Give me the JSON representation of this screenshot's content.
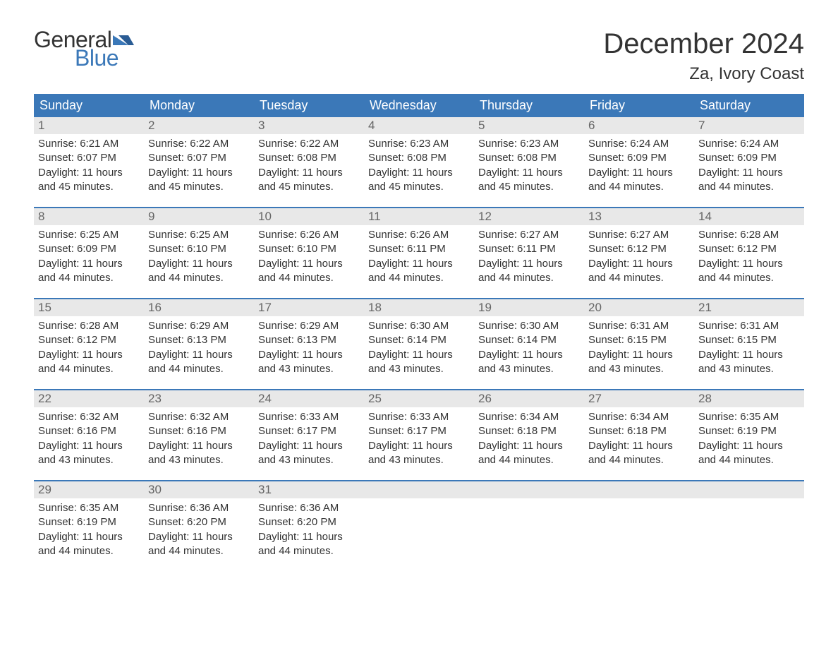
{
  "logo": {
    "text1": "General",
    "text2": "Blue",
    "accent_color": "#3b78b8"
  },
  "title": "December 2024",
  "location": "Za, Ivory Coast",
  "day_names": [
    "Sunday",
    "Monday",
    "Tuesday",
    "Wednesday",
    "Thursday",
    "Friday",
    "Saturday"
  ],
  "colors": {
    "header_bg": "#3b78b8",
    "header_text": "#ffffff",
    "daynum_bg": "#e8e8e8",
    "daynum_text": "#666666",
    "body_text": "#333333",
    "week_border": "#3b78b8",
    "page_bg": "#ffffff"
  },
  "fonts": {
    "title_size_pt": 30,
    "location_size_pt": 18,
    "dayheader_size_pt": 14,
    "daynum_size_pt": 13,
    "body_size_pt": 11
  },
  "weeks": [
    [
      {
        "n": "1",
        "sunrise": "Sunrise: 6:21 AM",
        "sunset": "Sunset: 6:07 PM",
        "daylight1": "Daylight: 11 hours",
        "daylight2": "and 45 minutes."
      },
      {
        "n": "2",
        "sunrise": "Sunrise: 6:22 AM",
        "sunset": "Sunset: 6:07 PM",
        "daylight1": "Daylight: 11 hours",
        "daylight2": "and 45 minutes."
      },
      {
        "n": "3",
        "sunrise": "Sunrise: 6:22 AM",
        "sunset": "Sunset: 6:08 PM",
        "daylight1": "Daylight: 11 hours",
        "daylight2": "and 45 minutes."
      },
      {
        "n": "4",
        "sunrise": "Sunrise: 6:23 AM",
        "sunset": "Sunset: 6:08 PM",
        "daylight1": "Daylight: 11 hours",
        "daylight2": "and 45 minutes."
      },
      {
        "n": "5",
        "sunrise": "Sunrise: 6:23 AM",
        "sunset": "Sunset: 6:08 PM",
        "daylight1": "Daylight: 11 hours",
        "daylight2": "and 45 minutes."
      },
      {
        "n": "6",
        "sunrise": "Sunrise: 6:24 AM",
        "sunset": "Sunset: 6:09 PM",
        "daylight1": "Daylight: 11 hours",
        "daylight2": "and 44 minutes."
      },
      {
        "n": "7",
        "sunrise": "Sunrise: 6:24 AM",
        "sunset": "Sunset: 6:09 PM",
        "daylight1": "Daylight: 11 hours",
        "daylight2": "and 44 minutes."
      }
    ],
    [
      {
        "n": "8",
        "sunrise": "Sunrise: 6:25 AM",
        "sunset": "Sunset: 6:09 PM",
        "daylight1": "Daylight: 11 hours",
        "daylight2": "and 44 minutes."
      },
      {
        "n": "9",
        "sunrise": "Sunrise: 6:25 AM",
        "sunset": "Sunset: 6:10 PM",
        "daylight1": "Daylight: 11 hours",
        "daylight2": "and 44 minutes."
      },
      {
        "n": "10",
        "sunrise": "Sunrise: 6:26 AM",
        "sunset": "Sunset: 6:10 PM",
        "daylight1": "Daylight: 11 hours",
        "daylight2": "and 44 minutes."
      },
      {
        "n": "11",
        "sunrise": "Sunrise: 6:26 AM",
        "sunset": "Sunset: 6:11 PM",
        "daylight1": "Daylight: 11 hours",
        "daylight2": "and 44 minutes."
      },
      {
        "n": "12",
        "sunrise": "Sunrise: 6:27 AM",
        "sunset": "Sunset: 6:11 PM",
        "daylight1": "Daylight: 11 hours",
        "daylight2": "and 44 minutes."
      },
      {
        "n": "13",
        "sunrise": "Sunrise: 6:27 AM",
        "sunset": "Sunset: 6:12 PM",
        "daylight1": "Daylight: 11 hours",
        "daylight2": "and 44 minutes."
      },
      {
        "n": "14",
        "sunrise": "Sunrise: 6:28 AM",
        "sunset": "Sunset: 6:12 PM",
        "daylight1": "Daylight: 11 hours",
        "daylight2": "and 44 minutes."
      }
    ],
    [
      {
        "n": "15",
        "sunrise": "Sunrise: 6:28 AM",
        "sunset": "Sunset: 6:12 PM",
        "daylight1": "Daylight: 11 hours",
        "daylight2": "and 44 minutes."
      },
      {
        "n": "16",
        "sunrise": "Sunrise: 6:29 AM",
        "sunset": "Sunset: 6:13 PM",
        "daylight1": "Daylight: 11 hours",
        "daylight2": "and 44 minutes."
      },
      {
        "n": "17",
        "sunrise": "Sunrise: 6:29 AM",
        "sunset": "Sunset: 6:13 PM",
        "daylight1": "Daylight: 11 hours",
        "daylight2": "and 43 minutes."
      },
      {
        "n": "18",
        "sunrise": "Sunrise: 6:30 AM",
        "sunset": "Sunset: 6:14 PM",
        "daylight1": "Daylight: 11 hours",
        "daylight2": "and 43 minutes."
      },
      {
        "n": "19",
        "sunrise": "Sunrise: 6:30 AM",
        "sunset": "Sunset: 6:14 PM",
        "daylight1": "Daylight: 11 hours",
        "daylight2": "and 43 minutes."
      },
      {
        "n": "20",
        "sunrise": "Sunrise: 6:31 AM",
        "sunset": "Sunset: 6:15 PM",
        "daylight1": "Daylight: 11 hours",
        "daylight2": "and 43 minutes."
      },
      {
        "n": "21",
        "sunrise": "Sunrise: 6:31 AM",
        "sunset": "Sunset: 6:15 PM",
        "daylight1": "Daylight: 11 hours",
        "daylight2": "and 43 minutes."
      }
    ],
    [
      {
        "n": "22",
        "sunrise": "Sunrise: 6:32 AM",
        "sunset": "Sunset: 6:16 PM",
        "daylight1": "Daylight: 11 hours",
        "daylight2": "and 43 minutes."
      },
      {
        "n": "23",
        "sunrise": "Sunrise: 6:32 AM",
        "sunset": "Sunset: 6:16 PM",
        "daylight1": "Daylight: 11 hours",
        "daylight2": "and 43 minutes."
      },
      {
        "n": "24",
        "sunrise": "Sunrise: 6:33 AM",
        "sunset": "Sunset: 6:17 PM",
        "daylight1": "Daylight: 11 hours",
        "daylight2": "and 43 minutes."
      },
      {
        "n": "25",
        "sunrise": "Sunrise: 6:33 AM",
        "sunset": "Sunset: 6:17 PM",
        "daylight1": "Daylight: 11 hours",
        "daylight2": "and 43 minutes."
      },
      {
        "n": "26",
        "sunrise": "Sunrise: 6:34 AM",
        "sunset": "Sunset: 6:18 PM",
        "daylight1": "Daylight: 11 hours",
        "daylight2": "and 44 minutes."
      },
      {
        "n": "27",
        "sunrise": "Sunrise: 6:34 AM",
        "sunset": "Sunset: 6:18 PM",
        "daylight1": "Daylight: 11 hours",
        "daylight2": "and 44 minutes."
      },
      {
        "n": "28",
        "sunrise": "Sunrise: 6:35 AM",
        "sunset": "Sunset: 6:19 PM",
        "daylight1": "Daylight: 11 hours",
        "daylight2": "and 44 minutes."
      }
    ],
    [
      {
        "n": "29",
        "sunrise": "Sunrise: 6:35 AM",
        "sunset": "Sunset: 6:19 PM",
        "daylight1": "Daylight: 11 hours",
        "daylight2": "and 44 minutes."
      },
      {
        "n": "30",
        "sunrise": "Sunrise: 6:36 AM",
        "sunset": "Sunset: 6:20 PM",
        "daylight1": "Daylight: 11 hours",
        "daylight2": "and 44 minutes."
      },
      {
        "n": "31",
        "sunrise": "Sunrise: 6:36 AM",
        "sunset": "Sunset: 6:20 PM",
        "daylight1": "Daylight: 11 hours",
        "daylight2": "and 44 minutes."
      },
      {
        "n": "",
        "sunrise": "",
        "sunset": "",
        "daylight1": "",
        "daylight2": ""
      },
      {
        "n": "",
        "sunrise": "",
        "sunset": "",
        "daylight1": "",
        "daylight2": ""
      },
      {
        "n": "",
        "sunrise": "",
        "sunset": "",
        "daylight1": "",
        "daylight2": ""
      },
      {
        "n": "",
        "sunrise": "",
        "sunset": "",
        "daylight1": "",
        "daylight2": ""
      }
    ]
  ]
}
